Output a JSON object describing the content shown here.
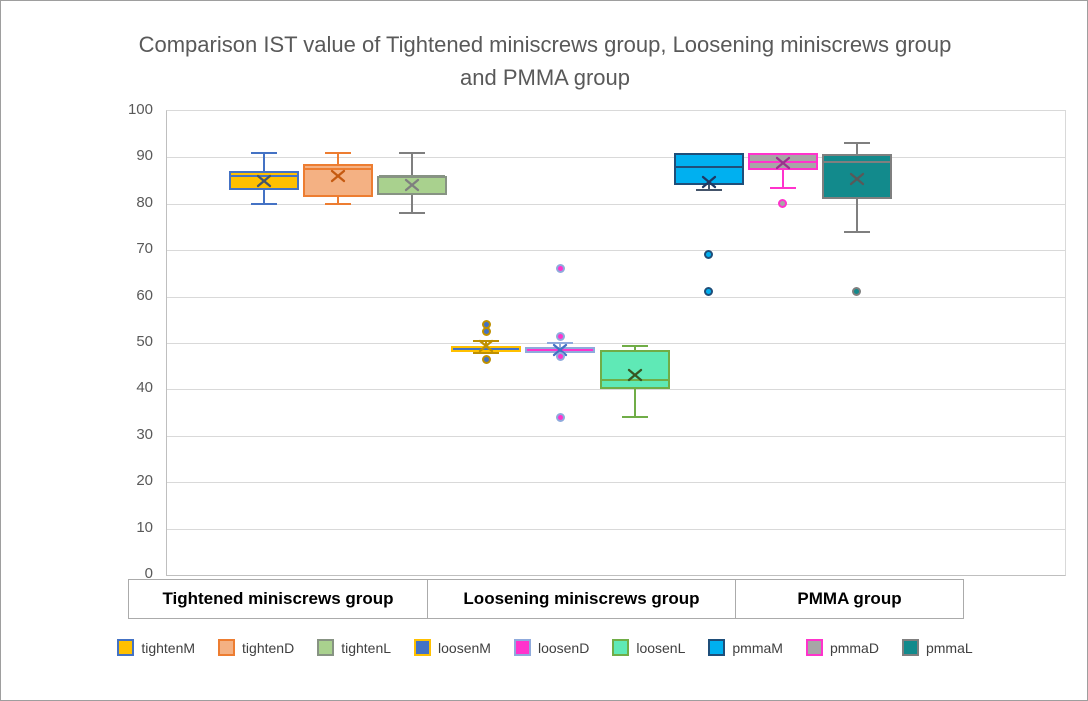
{
  "chart_data": {
    "type": "box",
    "title": "Comparison IST value of Tightened miniscrews group, Loosening miniscrews group and PMMA group",
    "ylabel": "",
    "xlabel": "",
    "ylim": [
      0,
      100
    ],
    "yticks": [
      0,
      10,
      20,
      30,
      40,
      50,
      60,
      70,
      80,
      90,
      100
    ],
    "grid": "horizontal",
    "legend_position": "bottom",
    "groups": [
      {
        "label": "Tightened miniscrews group"
      },
      {
        "label": "Loosening miniscrews group"
      },
      {
        "label": "PMMA group"
      }
    ],
    "series": [
      {
        "name": "tightenM",
        "group": "Tightened miniscrews group",
        "min": 80,
        "q1": 83,
        "median": 86,
        "q3": 87,
        "max": 91,
        "mean": 85,
        "outliers": [],
        "fill": "#FFC000",
        "border": "#4472C4",
        "whisker": "#4472C4",
        "mean_color": "#44546A"
      },
      {
        "name": "tightenD",
        "group": "Tightened miniscrews group",
        "min": 80,
        "q1": 81.5,
        "median": 87.5,
        "q3": 88.5,
        "max": 91,
        "mean": 86,
        "outliers": [],
        "fill": "#F4B183",
        "border": "#ED7D31",
        "whisker": "#ED7D31",
        "mean_color": "#C55A11"
      },
      {
        "name": "tightenL",
        "group": "Tightened miniscrews group",
        "min": 78,
        "q1": 82,
        "median": 86,
        "q3": 86,
        "max": 91,
        "mean": 84,
        "outliers": [],
        "fill": "#A9D18E",
        "border": "#879383",
        "whisker": "#7F7F7F",
        "mean_color": "#7F7F7F"
      },
      {
        "name": "loosenM",
        "group": "Loosening miniscrews group",
        "min": 47.8,
        "q1": 48.3,
        "median": 48.8,
        "q3": 49.3,
        "max": 50.4,
        "mean": 49.4,
        "outliers": [
          54,
          52.5,
          46.5
        ],
        "fill": "#4472C4",
        "border": "#FFC000",
        "whisker": "#BF9000",
        "mean_color": "#BF9000",
        "outlier_fill": "#4472C4",
        "outlier_ring": "#BF9000"
      },
      {
        "name": "loosenD",
        "group": "Loosening miniscrews group",
        "min": 48,
        "q1": 48.3,
        "median": 48.7,
        "q3": 49.1,
        "max": 50,
        "mean": 48.5,
        "outliers": [
          66,
          51.5,
          47,
          34
        ],
        "fill": "#FF33CC",
        "border": "#8FAADC",
        "whisker": "#8FAADC",
        "mean_color": "#4472C4",
        "outlier_fill": "#FF33CC",
        "outlier_ring": "#8FAADC"
      },
      {
        "name": "loosenL",
        "group": "Loosening miniscrews group",
        "min": 34,
        "q1": 40,
        "median": 42,
        "q3": 48.5,
        "max": 49.3,
        "mean": 43,
        "outliers": [],
        "fill": "#5FE9B6",
        "border": "#70AD47",
        "whisker": "#70AD47",
        "mean_color": "#375623"
      },
      {
        "name": "pmmaM",
        "group": "PMMA group",
        "min": 83,
        "q1": 84,
        "median": 88,
        "q3": 91,
        "max": 91,
        "mean": 84.7,
        "outliers": [
          69,
          61
        ],
        "fill": "#00B0F0",
        "border": "#1F4E79",
        "whisker": "#44546A",
        "mean_color": "#1F3864",
        "outlier_fill": "#00B0F0",
        "outlier_ring": "#1F4E79"
      },
      {
        "name": "pmmaD",
        "group": "PMMA group",
        "min": 83.5,
        "q1": 87.3,
        "median": 89,
        "q3": 91,
        "max": 91,
        "mean": 88.8,
        "outliers": [
          80
        ],
        "fill": "#A6A6A6",
        "border": "#FF33CC",
        "whisker": "#FF33CC",
        "mean_color": "#99338C",
        "outlier_fill": "#A6A6A6",
        "outlier_ring": "#FF33CC"
      },
      {
        "name": "pmmaL",
        "group": "PMMA group",
        "min": 74,
        "q1": 81,
        "median": 89,
        "q3": 90.7,
        "max": 93,
        "mean": 85.3,
        "outliers": [
          61
        ],
        "fill": "#128A8C",
        "border": "#7F7F7F",
        "whisker": "#7F7F7F",
        "mean_color": "#595959",
        "outlier_fill": "#128A8C",
        "outlier_ring": "#7F7F7F"
      }
    ]
  },
  "colors": {
    "title_text": "#595959",
    "axis_text": "#595959",
    "gridline": "#D9D9D9",
    "frame_border": "#9E9E9E",
    "table_border": "#ABABAB",
    "legend_text": "#404040"
  }
}
